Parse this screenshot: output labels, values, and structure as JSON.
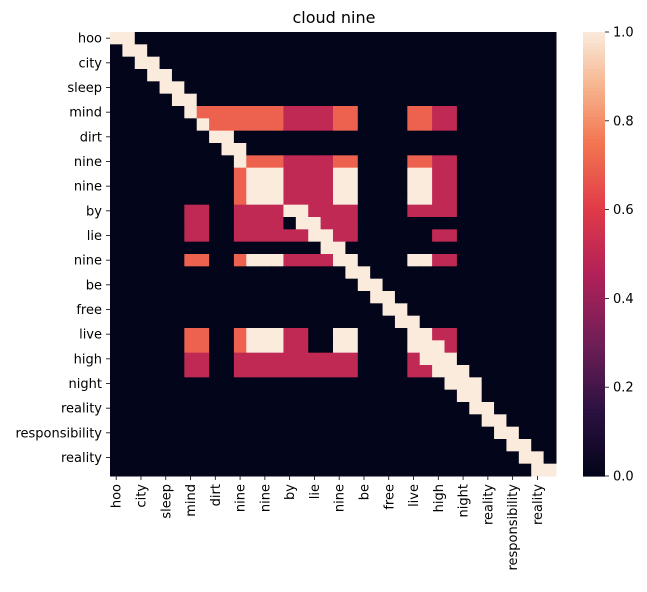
{
  "chart_data": {
    "type": "heatmap",
    "title": "cloud nine",
    "labels": [
      "hoo",
      "",
      "city",
      "",
      "sleep",
      "",
      "mind",
      "",
      "dirt",
      "",
      "nine",
      "",
      "nine",
      "",
      "by",
      "",
      "lie",
      "",
      "nine",
      "",
      "be",
      "",
      "free",
      "",
      "live",
      "",
      "high",
      "",
      "night",
      "",
      "reality",
      "",
      "responsibility",
      "",
      "reality",
      ""
    ],
    "x_tick_labels": [
      "hoo",
      "city",
      "sleep",
      "mind",
      "dirt",
      "nine",
      "nine",
      "by",
      "lie",
      "nine",
      "be",
      "free",
      "live",
      "high",
      "night",
      "reality",
      "responsibility",
      "reality"
    ],
    "y_tick_labels": [
      "hoo",
      "city",
      "sleep",
      "mind",
      "dirt",
      "nine",
      "nine",
      "by",
      "lie",
      "nine",
      "be",
      "free",
      "live",
      "high",
      "night",
      "reality",
      "responsibility",
      "reality"
    ],
    "vmin": 0,
    "vmax": 1,
    "colorbar_ticks": [
      "0.0",
      "0.2",
      "0.4",
      "0.6",
      "0.8",
      "1.0"
    ],
    "colormap": "rocket",
    "values": [
      [
        1,
        1,
        0,
        0,
        0,
        0,
        0,
        0,
        0,
        0,
        0,
        0,
        0,
        0,
        0,
        0,
        0,
        0,
        0,
        0,
        0,
        0,
        0,
        0,
        0,
        0,
        0,
        0,
        0,
        0,
        0,
        0,
        0,
        0,
        0,
        0
      ],
      [
        0,
        1,
        1,
        0,
        0,
        0,
        0,
        0,
        0,
        0,
        0,
        0,
        0,
        0,
        0,
        0,
        0,
        0,
        0,
        0,
        0,
        0,
        0,
        0,
        0,
        0,
        0,
        0,
        0,
        0,
        0,
        0,
        0,
        0,
        0,
        0
      ],
      [
        0,
        0,
        1,
        1,
        0,
        0,
        0,
        0,
        0,
        0,
        0,
        0,
        0,
        0,
        0,
        0,
        0,
        0,
        0,
        0,
        0,
        0,
        0,
        0,
        0,
        0,
        0,
        0,
        0,
        0,
        0,
        0,
        0,
        0,
        0,
        0
      ],
      [
        0,
        0,
        0,
        1,
        1,
        0,
        0,
        0,
        0,
        0,
        0,
        0,
        0,
        0,
        0,
        0,
        0,
        0,
        0,
        0,
        0,
        0,
        0,
        0,
        0,
        0,
        0,
        0,
        0,
        0,
        0,
        0,
        0,
        0,
        0,
        0
      ],
      [
        0,
        0,
        0,
        0,
        1,
        1,
        0,
        0,
        0,
        0,
        0,
        0,
        0,
        0,
        0,
        0,
        0,
        0,
        0,
        0,
        0,
        0,
        0,
        0,
        0,
        0,
        0,
        0,
        0,
        0,
        0,
        0,
        0,
        0,
        0,
        0
      ],
      [
        0,
        0,
        0,
        0,
        0,
        1,
        1,
        0,
        0,
        0,
        0,
        0,
        0,
        0,
        0,
        0,
        0,
        0,
        0,
        0,
        0,
        0,
        0,
        0,
        0,
        0,
        0,
        0,
        0,
        0,
        0,
        0,
        0,
        0,
        0,
        0
      ],
      [
        0,
        0,
        0,
        0,
        0,
        0,
        1,
        0.7,
        0.7,
        0.7,
        0.7,
        0.7,
        0.7,
        0.7,
        0.5,
        0.5,
        0.5,
        0.5,
        0.7,
        0.7,
        0,
        0,
        0,
        0,
        0.7,
        0.7,
        0.5,
        0.5,
        0,
        0,
        0,
        0,
        0,
        0,
        0,
        0
      ],
      [
        0,
        0,
        0,
        0,
        0,
        0,
        0,
        1,
        0.7,
        0.7,
        0.7,
        0.7,
        0.7,
        0.7,
        0.5,
        0.5,
        0.5,
        0.5,
        0.7,
        0.7,
        0,
        0,
        0,
        0,
        0.7,
        0.7,
        0.5,
        0.5,
        0,
        0,
        0,
        0,
        0,
        0,
        0,
        0
      ],
      [
        0,
        0,
        0,
        0,
        0,
        0,
        0,
        0,
        1,
        1,
        0,
        0,
        0,
        0,
        0,
        0,
        0,
        0,
        0,
        0,
        0,
        0,
        0,
        0,
        0,
        0,
        0,
        0,
        0,
        0,
        0,
        0,
        0,
        0,
        0,
        0
      ],
      [
        0,
        0,
        0,
        0,
        0,
        0,
        0,
        0,
        0,
        1,
        1,
        0,
        0,
        0,
        0,
        0,
        0,
        0,
        0,
        0,
        0,
        0,
        0,
        0,
        0,
        0,
        0,
        0,
        0,
        0,
        0,
        0,
        0,
        0,
        0,
        0
      ],
      [
        0,
        0,
        0,
        0,
        0,
        0,
        0,
        0,
        0,
        0,
        1,
        0.7,
        0.7,
        0.7,
        0.5,
        0.5,
        0.5,
        0.5,
        0.7,
        0.7,
        0,
        0,
        0,
        0,
        0.7,
        0.7,
        0.5,
        0.5,
        0,
        0,
        0,
        0,
        0,
        0,
        0,
        0
      ],
      [
        0,
        0,
        0,
        0,
        0,
        0,
        0,
        0,
        0,
        0,
        0.7,
        1,
        1,
        1,
        0.5,
        0.5,
        0.5,
        0.5,
        1,
        1,
        0,
        0,
        0,
        0,
        1,
        1,
        0.5,
        0.5,
        0,
        0,
        0,
        0,
        0,
        0,
        0,
        0
      ],
      [
        0,
        0,
        0,
        0,
        0,
        0,
        0,
        0,
        0,
        0,
        0.7,
        1,
        1,
        1,
        0.5,
        0.5,
        0.5,
        0.5,
        1,
        1,
        0,
        0,
        0,
        0,
        1,
        1,
        0.5,
        0.5,
        0,
        0,
        0,
        0,
        0,
        0,
        0,
        0
      ],
      [
        0,
        0,
        0,
        0,
        0,
        0,
        0,
        0,
        0,
        0,
        0.7,
        1,
        1,
        1,
        0.5,
        0.5,
        0.5,
        0.5,
        1,
        1,
        0,
        0,
        0,
        0,
        1,
        1,
        0.5,
        0.5,
        0,
        0,
        0,
        0,
        0,
        0,
        0,
        0
      ],
      [
        0,
        0,
        0,
        0,
        0,
        0,
        0.5,
        0.5,
        0,
        0,
        0.5,
        0.5,
        0.5,
        0.5,
        1,
        1,
        0.5,
        0.5,
        0.5,
        0.5,
        0,
        0,
        0,
        0,
        0.5,
        0.5,
        0.5,
        0.5,
        0,
        0,
        0,
        0,
        0,
        0,
        0,
        0
      ],
      [
        0,
        0,
        0,
        0,
        0,
        0,
        0.5,
        0.5,
        0,
        0,
        0.5,
        0.5,
        0.5,
        0.5,
        0,
        1,
        1,
        0.5,
        0.5,
        0.5,
        0,
        0,
        0,
        0,
        0,
        0,
        0,
        0,
        0,
        0,
        0,
        0,
        0,
        0,
        0,
        0
      ],
      [
        0,
        0,
        0,
        0,
        0,
        0,
        0.5,
        0.5,
        0,
        0,
        0.5,
        0.5,
        0.5,
        0.5,
        0.5,
        0.5,
        1,
        1,
        0.5,
        0.5,
        0,
        0,
        0,
        0,
        0,
        0,
        0.5,
        0.5,
        0,
        0,
        0,
        0,
        0,
        0,
        0,
        0
      ],
      [
        0,
        0,
        0,
        0,
        0,
        0,
        0,
        0,
        0,
        0,
        0,
        0,
        0,
        0,
        0,
        0,
        0,
        1,
        1,
        0,
        0,
        0,
        0,
        0,
        0,
        0,
        0,
        0,
        0,
        0,
        0,
        0,
        0,
        0,
        0,
        0
      ],
      [
        0,
        0,
        0,
        0,
        0,
        0,
        0.7,
        0.7,
        0,
        0,
        0.7,
        1,
        1,
        1,
        0.5,
        0.5,
        0.5,
        0.5,
        1,
        1,
        0,
        0,
        0,
        0,
        1,
        1,
        0.5,
        0.5,
        0,
        0,
        0,
        0,
        0,
        0,
        0,
        0
      ],
      [
        0,
        0,
        0,
        0,
        0,
        0,
        0,
        0,
        0,
        0,
        0,
        0,
        0,
        0,
        0,
        0,
        0,
        0,
        0,
        1,
        1,
        0,
        0,
        0,
        0,
        0,
        0,
        0,
        0,
        0,
        0,
        0,
        0,
        0,
        0,
        0
      ],
      [
        0,
        0,
        0,
        0,
        0,
        0,
        0,
        0,
        0,
        0,
        0,
        0,
        0,
        0,
        0,
        0,
        0,
        0,
        0,
        0,
        1,
        1,
        0,
        0,
        0,
        0,
        0,
        0,
        0,
        0,
        0,
        0,
        0,
        0,
        0,
        0
      ],
      [
        0,
        0,
        0,
        0,
        0,
        0,
        0,
        0,
        0,
        0,
        0,
        0,
        0,
        0,
        0,
        0,
        0,
        0,
        0,
        0,
        0,
        1,
        1,
        0,
        0,
        0,
        0,
        0,
        0,
        0,
        0,
        0,
        0,
        0,
        0,
        0
      ],
      [
        0,
        0,
        0,
        0,
        0,
        0,
        0,
        0,
        0,
        0,
        0,
        0,
        0,
        0,
        0,
        0,
        0,
        0,
        0,
        0,
        0,
        0,
        1,
        1,
        0,
        0,
        0,
        0,
        0,
        0,
        0,
        0,
        0,
        0,
        0,
        0
      ],
      [
        0,
        0,
        0,
        0,
        0,
        0,
        0,
        0,
        0,
        0,
        0,
        0,
        0,
        0,
        0,
        0,
        0,
        0,
        0,
        0,
        0,
        0,
        0,
        1,
        1,
        0,
        0,
        0,
        0,
        0,
        0,
        0,
        0,
        0,
        0,
        0
      ],
      [
        0,
        0,
        0,
        0,
        0,
        0,
        0.7,
        0.7,
        0,
        0,
        0.7,
        1,
        1,
        1,
        0.5,
        0.5,
        0,
        0,
        1,
        1,
        0,
        0,
        0,
        0,
        1,
        1,
        0.5,
        0.5,
        0,
        0,
        0,
        0,
        0,
        0,
        0,
        0
      ],
      [
        0,
        0,
        0,
        0,
        0,
        0,
        0.7,
        0.7,
        0,
        0,
        0.7,
        1,
        1,
        1,
        0.5,
        0.5,
        0,
        0,
        1,
        1,
        0,
        0,
        0,
        0,
        1,
        1,
        1,
        0.5,
        0,
        0,
        0,
        0,
        0,
        0,
        0,
        0
      ],
      [
        0,
        0,
        0,
        0,
        0,
        0,
        0.5,
        0.5,
        0,
        0,
        0.5,
        0.5,
        0.5,
        0.5,
        0.5,
        0.5,
        0.5,
        0.5,
        0.5,
        0.5,
        0,
        0,
        0,
        0,
        0.5,
        1,
        1,
        1,
        0,
        0,
        0,
        0,
        0,
        0,
        0,
        0
      ],
      [
        0,
        0,
        0,
        0,
        0,
        0,
        0.5,
        0.5,
        0,
        0,
        0.5,
        0.5,
        0.5,
        0.5,
        0.5,
        0.5,
        0.5,
        0.5,
        0.5,
        0.5,
        0,
        0,
        0,
        0,
        0.5,
        0.5,
        1,
        1,
        1,
        0,
        0,
        0,
        0,
        0,
        0,
        0
      ],
      [
        0,
        0,
        0,
        0,
        0,
        0,
        0,
        0,
        0,
        0,
        0,
        0,
        0,
        0,
        0,
        0,
        0,
        0,
        0,
        0,
        0,
        0,
        0,
        0,
        0,
        0,
        0,
        1,
        1,
        1,
        0,
        0,
        0,
        0,
        0,
        0
      ],
      [
        0,
        0,
        0,
        0,
        0,
        0,
        0,
        0,
        0,
        0,
        0,
        0,
        0,
        0,
        0,
        0,
        0,
        0,
        0,
        0,
        0,
        0,
        0,
        0,
        0,
        0,
        0,
        0,
        1,
        1,
        0,
        0,
        0,
        0,
        0,
        0
      ],
      [
        0,
        0,
        0,
        0,
        0,
        0,
        0,
        0,
        0,
        0,
        0,
        0,
        0,
        0,
        0,
        0,
        0,
        0,
        0,
        0,
        0,
        0,
        0,
        0,
        0,
        0,
        0,
        0,
        0,
        1,
        1,
        0,
        0,
        0,
        0,
        0
      ],
      [
        0,
        0,
        0,
        0,
        0,
        0,
        0,
        0,
        0,
        0,
        0,
        0,
        0,
        0,
        0,
        0,
        0,
        0,
        0,
        0,
        0,
        0,
        0,
        0,
        0,
        0,
        0,
        0,
        0,
        0,
        1,
        1,
        0,
        0,
        0,
        0
      ],
      [
        0,
        0,
        0,
        0,
        0,
        0,
        0,
        0,
        0,
        0,
        0,
        0,
        0,
        0,
        0,
        0,
        0,
        0,
        0,
        0,
        0,
        0,
        0,
        0,
        0,
        0,
        0,
        0,
        0,
        0,
        0,
        1,
        1,
        0,
        0,
        0
      ],
      [
        0,
        0,
        0,
        0,
        0,
        0,
        0,
        0,
        0,
        0,
        0,
        0,
        0,
        0,
        0,
        0,
        0,
        0,
        0,
        0,
        0,
        0,
        0,
        0,
        0,
        0,
        0,
        0,
        0,
        0,
        0,
        0,
        1,
        1,
        0,
        0
      ],
      [
        0,
        0,
        0,
        0,
        0,
        0,
        0,
        0,
        0,
        0,
        0,
        0,
        0,
        0,
        0,
        0,
        0,
        0,
        0,
        0,
        0,
        0,
        0,
        0,
        0,
        0,
        0,
        0,
        0,
        0,
        0,
        0,
        0,
        1,
        1,
        0
      ],
      [
        0,
        0,
        0,
        0,
        0,
        0,
        0,
        0,
        0,
        0,
        0,
        0,
        0,
        0,
        0,
        0,
        0,
        0,
        0,
        0,
        0,
        0,
        0,
        0,
        0,
        0,
        0,
        0,
        0,
        0,
        0,
        0,
        0,
        0,
        1,
        1
      ]
    ]
  }
}
